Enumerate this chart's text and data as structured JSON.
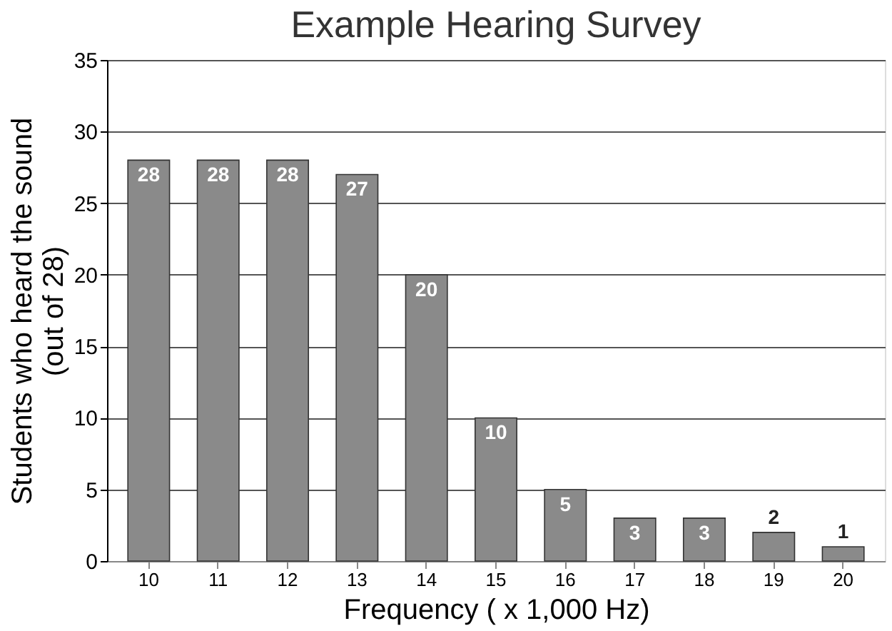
{
  "chart_data": {
    "type": "bar",
    "title": "Example Hearing Survey",
    "xlabel": "Frequency ( x 1,000 Hz)",
    "ylabel": "Students who heard the sound (out of 28)",
    "categories": [
      "10",
      "11",
      "12",
      "13",
      "14",
      "15",
      "16",
      "17",
      "18",
      "19",
      "20"
    ],
    "values": [
      28,
      28,
      28,
      27,
      20,
      10,
      5,
      3,
      3,
      2,
      1
    ],
    "color": "#8a8a8a",
    "ylim": [
      0,
      35
    ],
    "yticks": [
      0,
      5,
      10,
      15,
      20,
      25,
      30,
      35
    ],
    "grid": "y",
    "data_labels": true
  }
}
